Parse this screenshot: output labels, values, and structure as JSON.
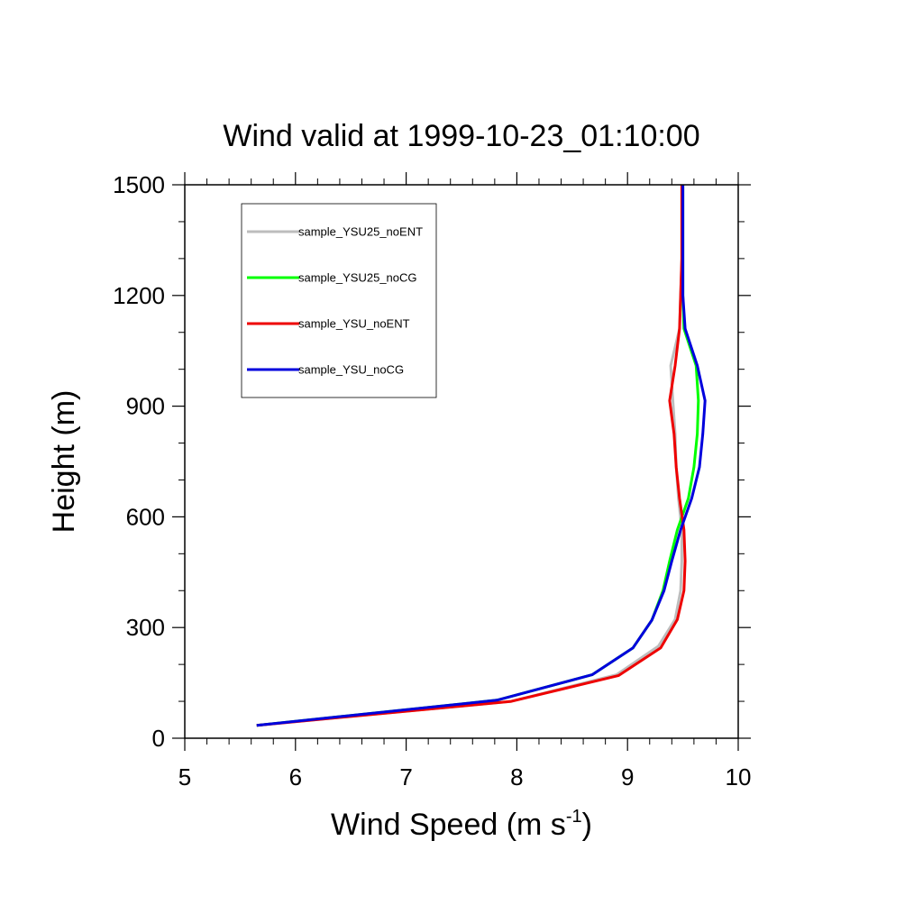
{
  "chart_data": {
    "type": "line",
    "title": "Wind valid at 1999-10-23_01:10:00",
    "xlabel": "Wind Speed (m s",
    "xlabel_sup": "-1",
    "xlabel_end": ")",
    "ylabel": "Height (m)",
    "xlim": [
      5,
      10
    ],
    "ylim": [
      0,
      1500
    ],
    "xticks": [
      "5",
      "6",
      "7",
      "8",
      "9",
      "10"
    ],
    "yticks": [
      "0",
      "300",
      "600",
      "900",
      "1200",
      "1500"
    ],
    "legend_position": "top-left",
    "series": [
      {
        "name": "sample_YSU25_noENT",
        "color": "#bdbdbd",
        "points": [
          [
            5.65,
            35
          ],
          [
            7.95,
            100
          ],
          [
            8.9,
            172
          ],
          [
            9.28,
            250
          ],
          [
            9.43,
            322
          ],
          [
            9.48,
            400
          ],
          [
            9.49,
            480
          ],
          [
            9.49,
            565
          ],
          [
            9.46,
            650
          ],
          [
            9.44,
            735
          ],
          [
            9.43,
            825
          ],
          [
            9.41,
            915
          ],
          [
            9.39,
            1010
          ],
          [
            9.47,
            1110
          ],
          [
            9.48,
            1200
          ],
          [
            9.49,
            1300
          ],
          [
            9.49,
            1400
          ],
          [
            9.49,
            1500
          ]
        ]
      },
      {
        "name": "sample_YSU25_noCG",
        "color": "#00ff00",
        "points": [
          [
            5.65,
            35
          ],
          [
            7.82,
            103
          ],
          [
            8.68,
            172
          ],
          [
            9.05,
            245
          ],
          [
            9.22,
            320
          ],
          [
            9.32,
            400
          ],
          [
            9.38,
            480
          ],
          [
            9.45,
            565
          ],
          [
            9.55,
            650
          ],
          [
            9.6,
            735
          ],
          [
            9.63,
            825
          ],
          [
            9.64,
            915
          ],
          [
            9.62,
            1010
          ],
          [
            9.51,
            1110
          ],
          [
            9.5,
            1200
          ],
          [
            9.5,
            1300
          ],
          [
            9.5,
            1400
          ],
          [
            9.5,
            1500
          ]
        ]
      },
      {
        "name": "sample_YSU_noENT",
        "color": "#ee0000",
        "points": [
          [
            5.65,
            35
          ],
          [
            7.95,
            100
          ],
          [
            8.92,
            170
          ],
          [
            9.3,
            245
          ],
          [
            9.45,
            322
          ],
          [
            9.51,
            400
          ],
          [
            9.52,
            480
          ],
          [
            9.51,
            565
          ],
          [
            9.47,
            650
          ],
          [
            9.44,
            735
          ],
          [
            9.42,
            825
          ],
          [
            9.38,
            915
          ],
          [
            9.43,
            1010
          ],
          [
            9.47,
            1110
          ],
          [
            9.48,
            1200
          ],
          [
            9.49,
            1300
          ],
          [
            9.49,
            1400
          ],
          [
            9.49,
            1500
          ]
        ]
      },
      {
        "name": "sample_YSU_noCG",
        "color": "#0000dd",
        "points": [
          [
            5.65,
            35
          ],
          [
            7.82,
            103
          ],
          [
            8.68,
            172
          ],
          [
            9.05,
            245
          ],
          [
            9.22,
            320
          ],
          [
            9.33,
            400
          ],
          [
            9.4,
            480
          ],
          [
            9.48,
            565
          ],
          [
            9.58,
            650
          ],
          [
            9.65,
            735
          ],
          [
            9.68,
            825
          ],
          [
            9.7,
            915
          ],
          [
            9.63,
            1010
          ],
          [
            9.52,
            1110
          ],
          [
            9.5,
            1200
          ],
          [
            9.5,
            1300
          ],
          [
            9.5,
            1400
          ],
          [
            9.5,
            1500
          ]
        ]
      }
    ]
  }
}
